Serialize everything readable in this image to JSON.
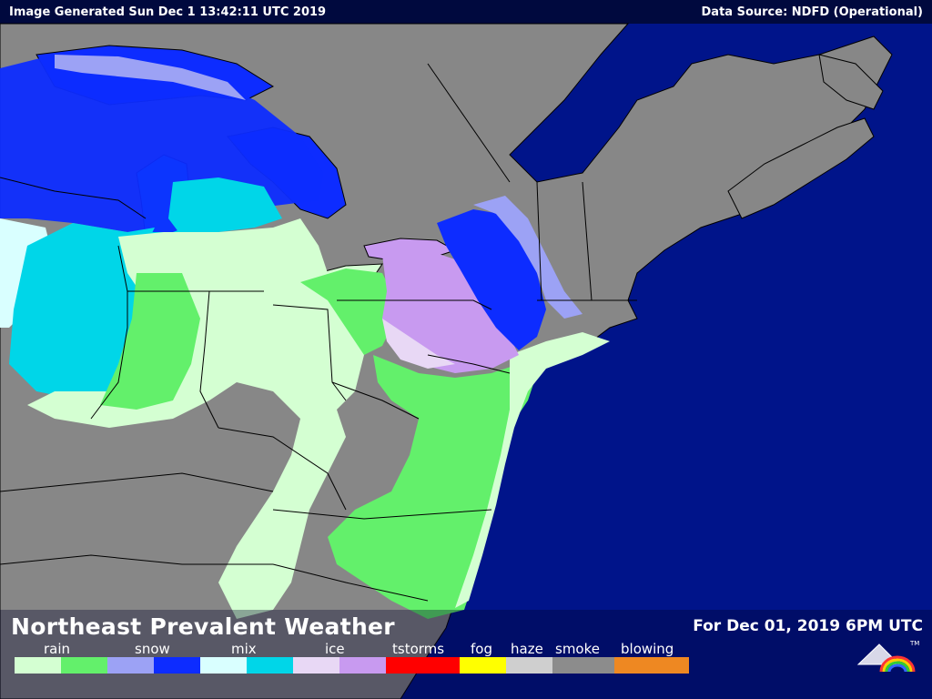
{
  "header": {
    "generated": "Image Generated Sun Dec  1 13:42:11 UTC 2019",
    "source": "Data Source: NDFD (Operational)"
  },
  "footer": {
    "title": "Northeast Prevalent Weather",
    "valid_time": "For Dec 01, 2019  6PM UTC"
  },
  "legend": {
    "labels": [
      "rain",
      "snow",
      "mix",
      "ice",
      "tstorms",
      "fog",
      "haze",
      "smoke",
      "blowing"
    ],
    "swatches": [
      "#d4ffd2",
      "#63f06b",
      "#9ca2f5",
      "#0d2cff",
      "#d9ffff",
      "#00d6e8",
      "#e8d8f5",
      "#c89af0",
      "#ff0000",
      "#ffff00",
      "#cfcfcf",
      "#8c8c8c",
      "#ee8822"
    ]
  },
  "colors": {
    "ocean": "#00148a",
    "land": "#878787",
    "border": "#000000"
  },
  "logo": {
    "mark": "TM"
  }
}
